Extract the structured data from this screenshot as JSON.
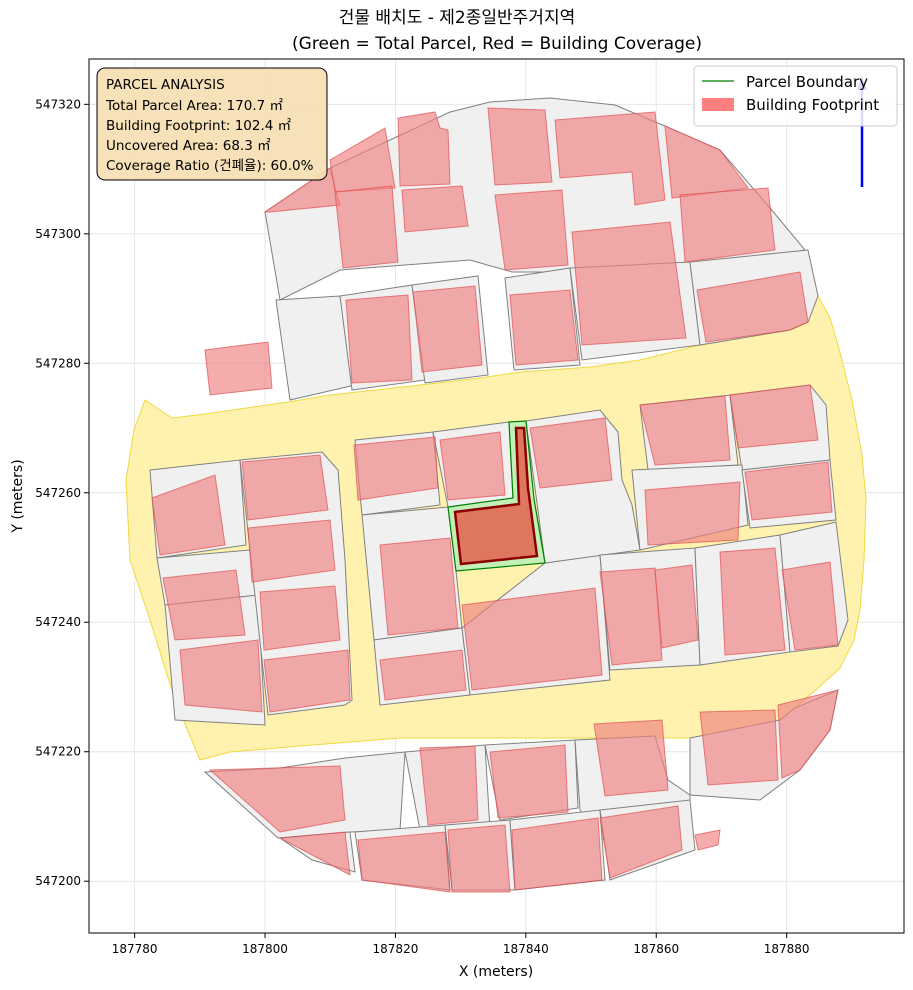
{
  "title": {
    "line1": "건물 배치도 - 제2종일반주거지역",
    "line2": "(Green = Total Parcel, Red = Building Coverage)"
  },
  "axes": {
    "xlabel": "X (meters)",
    "ylabel": "Y (meters)",
    "xlim": [
      187773,
      187898
    ],
    "ylim": [
      547192,
      547327
    ],
    "xticks": [
      "187780",
      "187800",
      "187820",
      "187840",
      "187860",
      "187880"
    ],
    "yticks": [
      "547200",
      "547220",
      "547240",
      "547260",
      "547280",
      "547300",
      "547320"
    ],
    "grid": true
  },
  "info_box": {
    "heading": "PARCEL ANALYSIS",
    "total_area": "Total Parcel Area: 170.7 ㎡",
    "footprint": "Building Footprint: 102.4 ㎡",
    "uncovered": "Uncovered Area: 68.3 ㎡",
    "coverage": "Coverage Ratio (건폐율): 60.0%"
  },
  "legend": {
    "placement": "top-right",
    "parcel": "Parcel Boundary",
    "building": "Building Footprint"
  },
  "colors": {
    "parcel_edge": "#007f00",
    "parcel_fill": "#b8f0b8",
    "target_building": "#e0705a",
    "target_edge": "#8b0000",
    "building_fill": "#f08080",
    "road": "#fff099",
    "lot_fill": "#ececec",
    "info_bg": "#f5deb3",
    "north_arrow": "#0000ff"
  }
}
